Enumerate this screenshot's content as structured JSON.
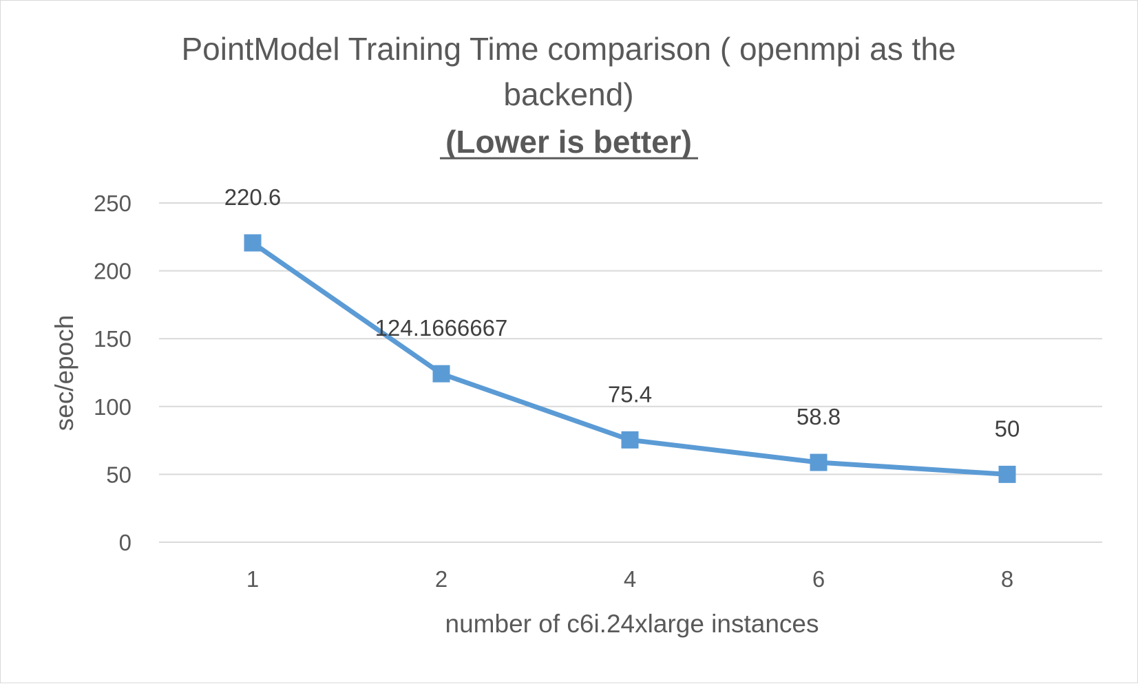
{
  "chart_data": {
    "type": "line",
    "title_lines": [
      "PointModel Training Time comparison ( openmpi as the",
      "backend)"
    ],
    "subtitle": "(Lower is better)",
    "xlabel": "number of c6i.24xlarge instances",
    "ylabel": "sec/epoch",
    "categories": [
      "1",
      "2",
      "4",
      "6",
      "8"
    ],
    "series": [
      {
        "values": [
          220.6,
          124.1666667,
          75.4,
          58.8,
          50
        ],
        "data_labels": [
          "220.6",
          "124.1666667",
          "75.4",
          "58.8",
          "50"
        ],
        "color": "#5B9BD5",
        "marker": "square"
      }
    ],
    "ylim": [
      0,
      250
    ],
    "yticks": [
      "0",
      "50",
      "100",
      "150",
      "200",
      "250"
    ],
    "grid": true,
    "legend": "none"
  }
}
